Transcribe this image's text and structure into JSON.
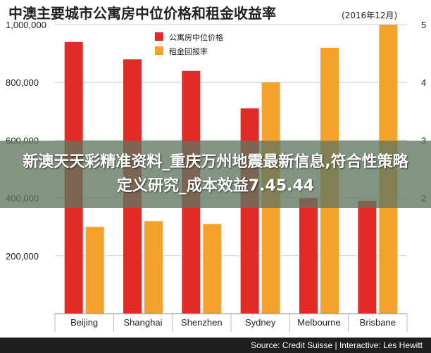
{
  "chart_data": {
    "type": "bar",
    "title": "中澳主要城市公寓房中位价格和租金收益率",
    "subtitle": "(2016年12月)",
    "categories": [
      "Beijing",
      "Shanghai",
      "Shenzhen",
      "Sydney",
      "Melbourne",
      "Brisbane"
    ],
    "series": [
      {
        "name": "公寓房中位价格",
        "axis": "left",
        "color": "#e02b26",
        "values": [
          940000,
          880000,
          840000,
          710000,
          400000,
          390000
        ]
      },
      {
        "name": "租金回报率",
        "axis": "right",
        "color": "#f5a22c",
        "values": [
          1.5,
          1.6,
          1.55,
          4.0,
          4.6,
          5.0
        ]
      }
    ],
    "left_axis": {
      "ylim": [
        0,
        1000000
      ],
      "ticks": [
        200000,
        400000,
        600000,
        800000,
        1000000
      ],
      "tick_labels": [
        "200,000",
        "400,000",
        "600,000",
        "800,000",
        "1,000,000"
      ]
    },
    "right_axis": {
      "ylim": [
        0,
        5
      ],
      "ticks": [
        2,
        3,
        4,
        5
      ],
      "tick_labels": [
        "2",
        "3",
        "4",
        "5"
      ]
    },
    "grid": true,
    "legend_position": "top-center",
    "source": "Source: Credit Suisse | Interactive: Les Hewitt"
  },
  "banner": {
    "text": "新澳天天彩精准资料_重庆万州地震最新信息,符合性策略定义研究_成本效益7.45.44"
  }
}
